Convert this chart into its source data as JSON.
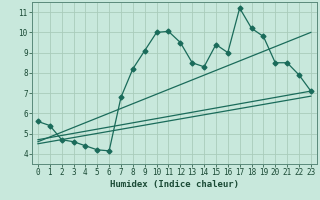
{
  "title": "",
  "xlabel": "Humidex (Indice chaleur)",
  "ylabel": "",
  "background_color": "#c8e8dc",
  "grid_color": "#aaccbb",
  "line_color": "#1a6b5a",
  "xlim": [
    -0.5,
    23.5
  ],
  "ylim": [
    3.5,
    11.5
  ],
  "yticks": [
    4,
    5,
    6,
    7,
    8,
    9,
    10,
    11
  ],
  "xticks": [
    0,
    1,
    2,
    3,
    4,
    5,
    6,
    7,
    8,
    9,
    10,
    11,
    12,
    13,
    14,
    15,
    16,
    17,
    18,
    19,
    20,
    21,
    22,
    23
  ],
  "series1_x": [
    0,
    1,
    2,
    3,
    4,
    5,
    6,
    7,
    8,
    9,
    10,
    11,
    12,
    13,
    14,
    15,
    16,
    17,
    18,
    19,
    20,
    21,
    22,
    23
  ],
  "series1_y": [
    5.6,
    5.4,
    4.7,
    4.6,
    4.4,
    4.2,
    4.15,
    6.8,
    8.2,
    9.1,
    10.0,
    10.05,
    9.5,
    8.5,
    8.3,
    9.4,
    9.0,
    11.2,
    10.2,
    9.8,
    8.5,
    8.5,
    7.9,
    7.1
  ],
  "series2_x": [
    0,
    23
  ],
  "series2_y": [
    4.7,
    7.1
  ],
  "series3_x": [
    0,
    23
  ],
  "series3_y": [
    4.6,
    10.0
  ],
  "series4_x": [
    0,
    23
  ],
  "series4_y": [
    4.5,
    6.85
  ],
  "markersize": 2.5,
  "linewidth": 0.9
}
